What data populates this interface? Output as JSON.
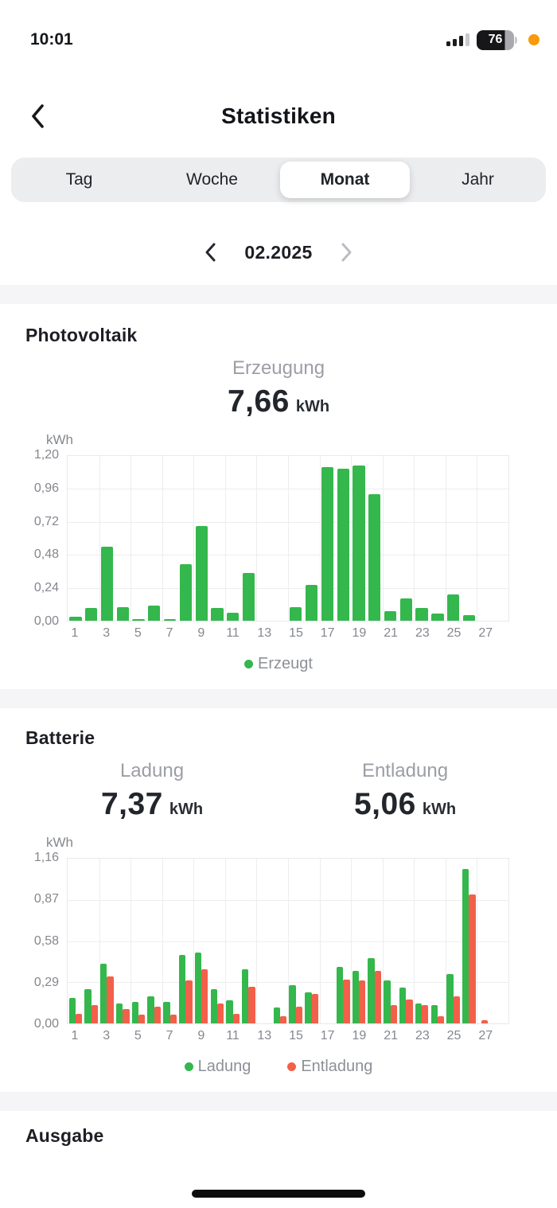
{
  "status_bar": {
    "time": "10:01",
    "battery_percent": "76"
  },
  "header": {
    "title": "Statistiken"
  },
  "tabs": {
    "items": [
      {
        "label": "Tag",
        "selected": false
      },
      {
        "label": "Woche",
        "selected": false
      },
      {
        "label": "Monat",
        "selected": true
      },
      {
        "label": "Jahr",
        "selected": false
      }
    ]
  },
  "date_nav": {
    "value": "02.2025"
  },
  "colors": {
    "green": "#34b74c",
    "red": "#f2604a",
    "band_gray": "#f5f5f7"
  },
  "sections": {
    "photovoltaik": {
      "heading": "Photovoltaik",
      "stat": {
        "label": "Erzeugung",
        "value": "7,66",
        "unit": "kWh"
      },
      "legend": [
        {
          "label": "Erzeugt",
          "color": "#34b74c"
        }
      ]
    },
    "batterie": {
      "heading": "Batterie",
      "stats": [
        {
          "label": "Ladung",
          "value": "7,37",
          "unit": "kWh"
        },
        {
          "label": "Entladung",
          "value": "5,06",
          "unit": "kWh"
        }
      ],
      "legend": [
        {
          "label": "Ladung",
          "color": "#34b74c"
        },
        {
          "label": "Entladung",
          "color": "#f2604a"
        }
      ]
    },
    "ausgabe": {
      "heading": "Ausgabe"
    }
  },
  "chart_data": [
    {
      "id": "photovoltaik-erzeugung",
      "type": "bar",
      "title": "Erzeugung",
      "total": "7,66 kWh",
      "ylabel": "kWh",
      "ylim": [
        0,
        1.2
      ],
      "yticks": [
        "1,20",
        "0,96",
        "0,72",
        "0,48",
        "0,24",
        "0,00"
      ],
      "categories": [
        1,
        2,
        3,
        4,
        5,
        6,
        7,
        8,
        9,
        10,
        11,
        12,
        13,
        14,
        15,
        16,
        17,
        18,
        19,
        20,
        21,
        22,
        23,
        24,
        25,
        26,
        27,
        28
      ],
      "xtick_labels": [
        "1",
        "3",
        "5",
        "7",
        "9",
        "11",
        "13",
        "15",
        "17",
        "19",
        "21",
        "23",
        "25",
        "27"
      ],
      "grid": true,
      "legend_position": "bottom",
      "series": [
        {
          "name": "Erzeugt",
          "color": "#34b74c",
          "values": [
            0.03,
            0.09,
            0.54,
            0.1,
            0.01,
            0.11,
            0.01,
            0.41,
            0.69,
            0.09,
            0.06,
            0.35,
            0,
            0,
            0.1,
            0.26,
            1.12,
            1.11,
            1.13,
            0.92,
            0.07,
            0.16,
            0.09,
            0.05,
            0.19,
            0.04,
            0,
            0
          ]
        }
      ]
    },
    {
      "id": "batterie-ladung-entladung",
      "type": "bar",
      "title": "Ladung / Entladung",
      "totals": {
        "Ladung": "7,37 kWh",
        "Entladung": "5,06 kWh"
      },
      "ylabel": "kWh",
      "ylim": [
        0,
        1.16
      ],
      "yticks": [
        "1,16",
        "0,87",
        "0,58",
        "0,29",
        "0,00"
      ],
      "categories": [
        1,
        2,
        3,
        4,
        5,
        6,
        7,
        8,
        9,
        10,
        11,
        12,
        13,
        14,
        15,
        16,
        17,
        18,
        19,
        20,
        21,
        22,
        23,
        24,
        25,
        26,
        27,
        28
      ],
      "xtick_labels": [
        "1",
        "3",
        "5",
        "7",
        "9",
        "11",
        "13",
        "15",
        "17",
        "19",
        "21",
        "23",
        "25",
        "27"
      ],
      "grid": true,
      "legend_position": "bottom",
      "series": [
        {
          "name": "Ladung",
          "color": "#34b74c",
          "values": [
            0.18,
            0.24,
            0.42,
            0.14,
            0.15,
            0.19,
            0.15,
            0.48,
            0.5,
            0.24,
            0.16,
            0.38,
            0,
            0.11,
            0.27,
            0.22,
            0,
            0.4,
            0.37,
            0.46,
            0.3,
            0.25,
            0.14,
            0.13,
            0.35,
            1.09,
            0,
            0
          ]
        },
        {
          "name": "Entladung",
          "color": "#f2604a",
          "values": [
            0.07,
            0.13,
            0.33,
            0.1,
            0.06,
            0.12,
            0.06,
            0.3,
            0.38,
            0.14,
            0.07,
            0.26,
            0,
            0.05,
            0.12,
            0.21,
            0,
            0.31,
            0.3,
            0.37,
            0.13,
            0.17,
            0.13,
            0.05,
            0.19,
            0.91,
            0.02,
            0
          ]
        }
      ]
    }
  ]
}
